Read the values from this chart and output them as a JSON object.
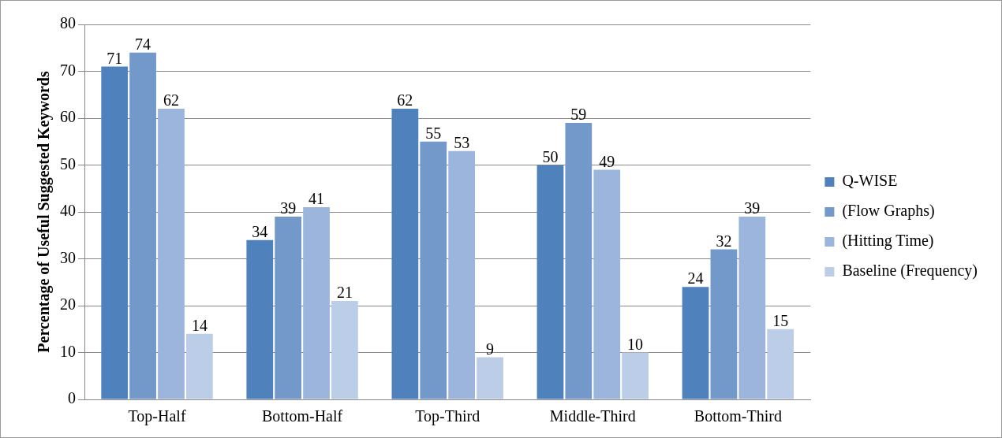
{
  "chart_data": {
    "type": "bar",
    "ylabel": "Percentage of Useful Suggested Keywords",
    "categories": [
      "Top-Half",
      "Bottom-Half",
      "Top-Third",
      "Middle-Third",
      "Bottom-Third"
    ],
    "series": [
      {
        "name": "Q-WISE",
        "color": "#4f81bd",
        "values": [
          71,
          34,
          62,
          50,
          24
        ]
      },
      {
        "name": "(Flow Graphs)",
        "color": "#7399cb",
        "values": [
          74,
          39,
          55,
          59,
          32
        ]
      },
      {
        "name": "(Hitting Time)",
        "color": "#9bb5dc",
        "values": [
          62,
          41,
          53,
          49,
          39
        ]
      },
      {
        "name": "Baseline (Frequency)",
        "color": "#bccde8",
        "values": [
          14,
          21,
          9,
          10,
          15
        ]
      }
    ],
    "ylim": [
      0,
      80
    ],
    "yticks": [
      0,
      10,
      20,
      30,
      40,
      50,
      60,
      70,
      80
    ],
    "grid": "y",
    "legend": "right",
    "data_labels": true
  }
}
